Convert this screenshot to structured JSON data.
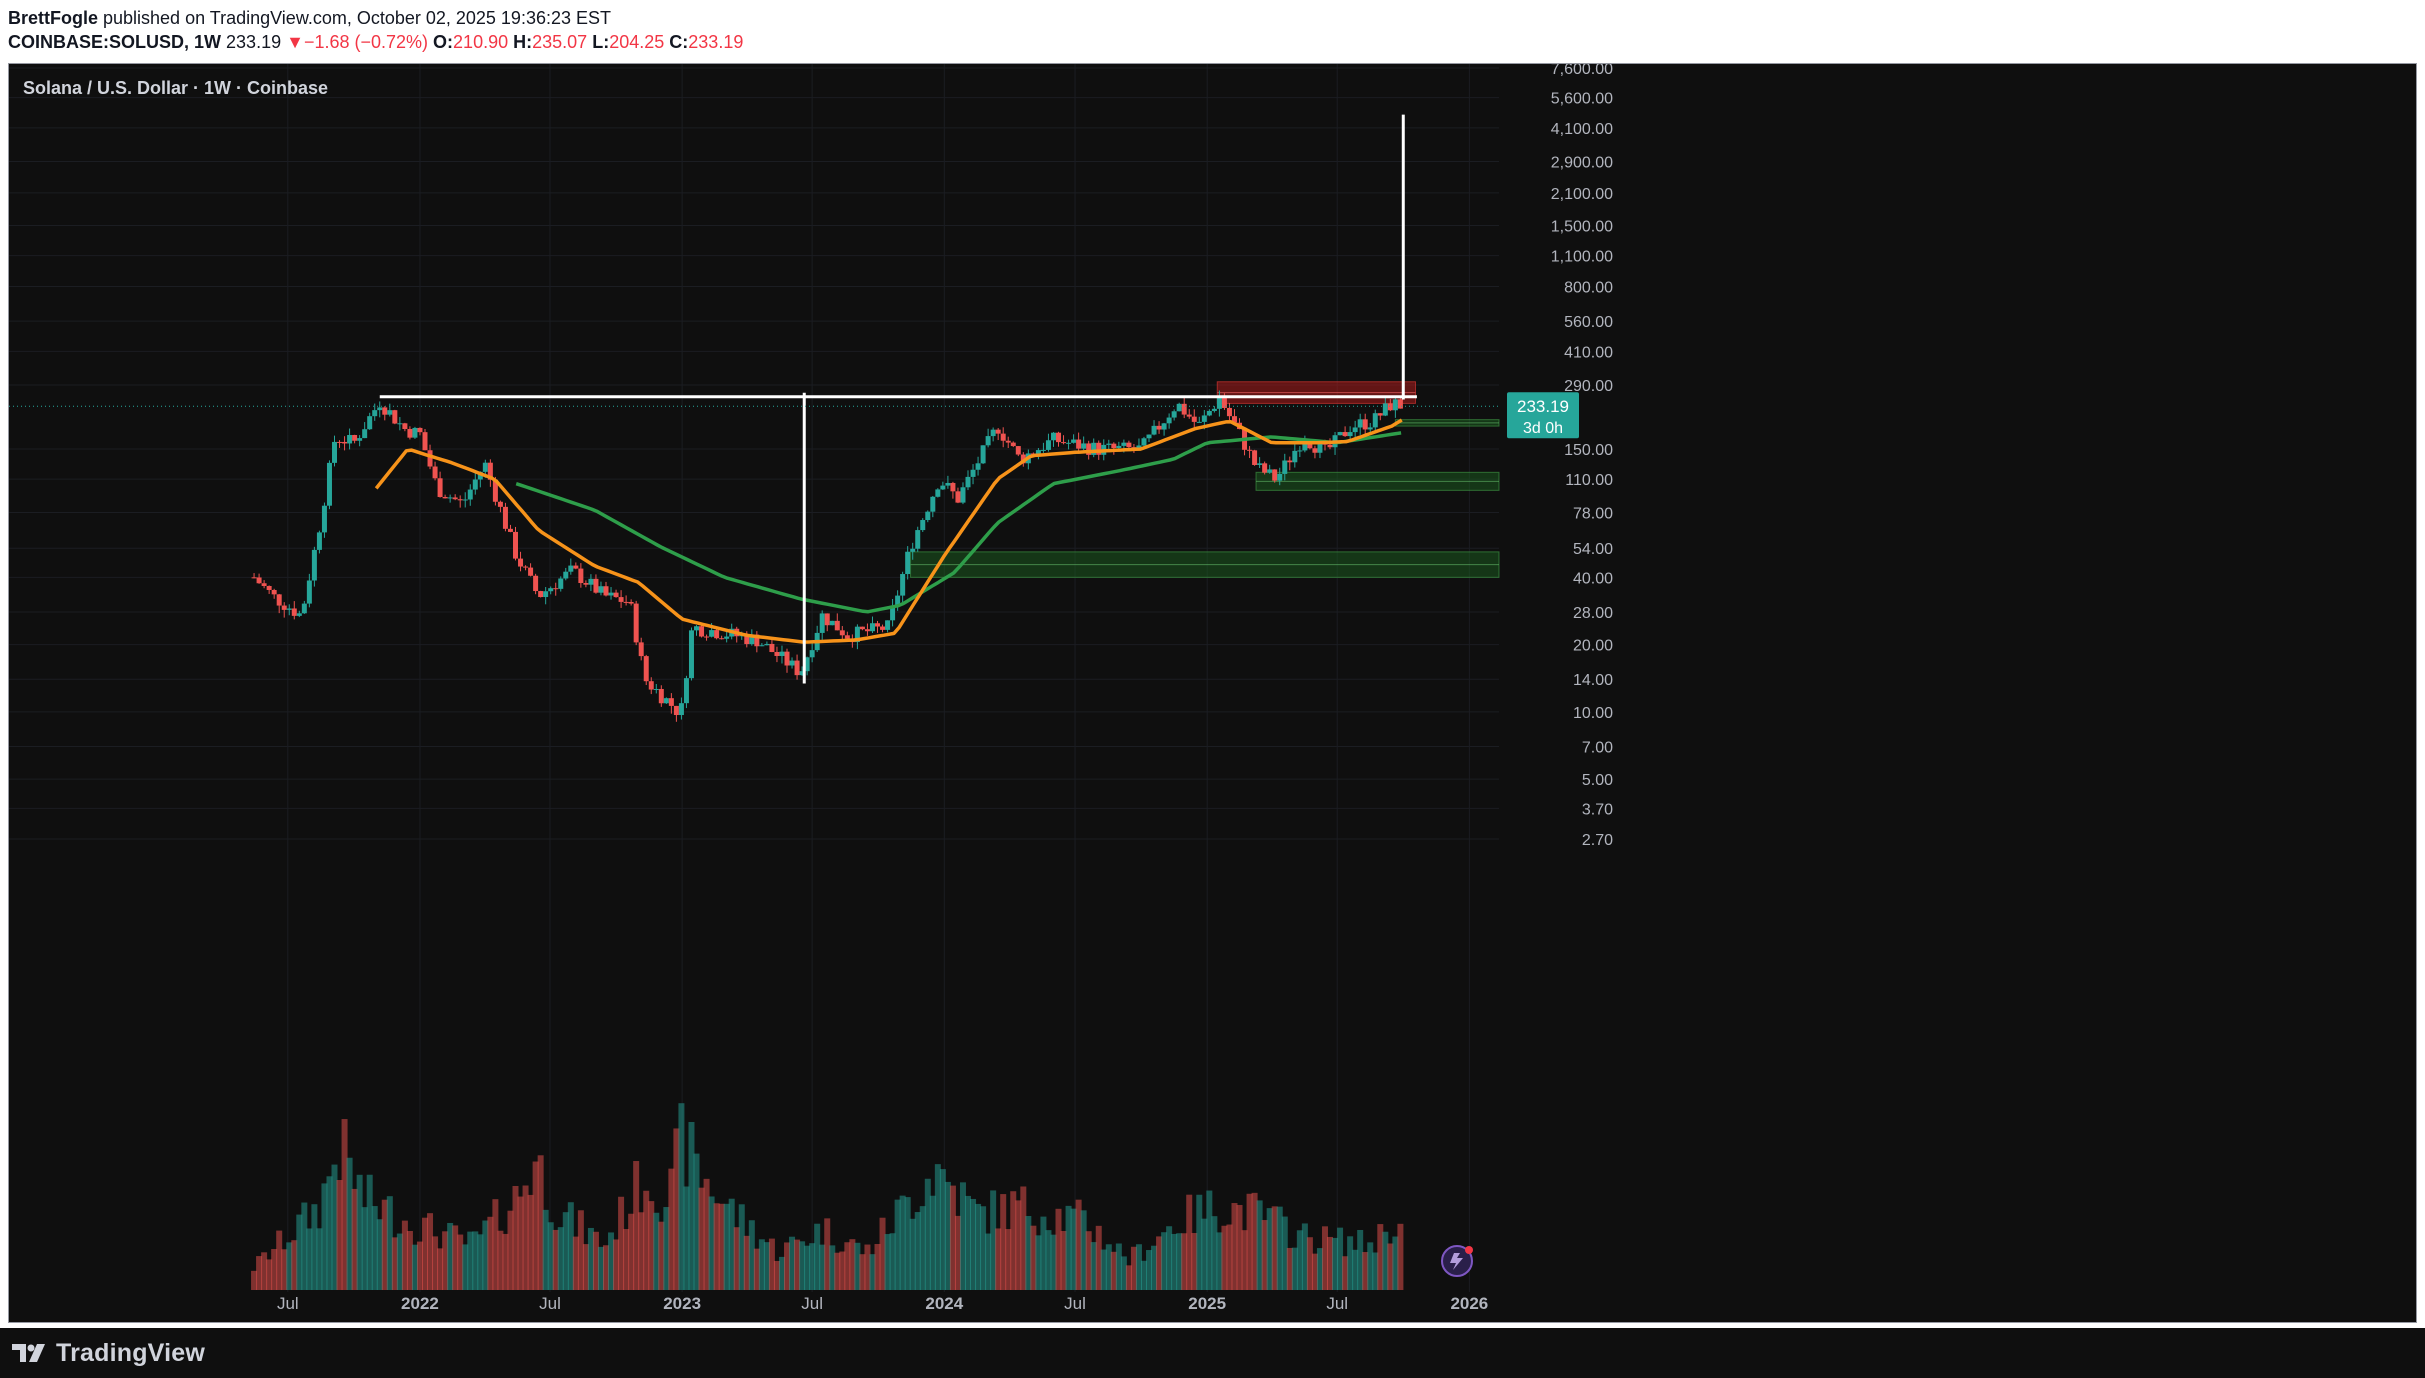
{
  "header": {
    "author": "BrettFogle",
    "published_text": " published on TradingView.com, October 02, 2025 19:36:23 EST",
    "symbol": "COINBASE:SOLUSD, 1W",
    "last": "233.19",
    "change_arrow": "▼",
    "change": "−1.68 (−0.72%)",
    "o_label": "O:",
    "o_value": "210.90",
    "h_label": "H:",
    "h_value": "235.07",
    "l_label": "L:",
    "l_value": "204.25",
    "c_label": "C:",
    "c_value": "233.19"
  },
  "legend": {
    "title": "Solana / U.S. Dollar · 1W · Coinbase"
  },
  "price_tag": {
    "price": "233.19",
    "countdown": "3d 0h"
  },
  "footer": {
    "brand": "TradingView"
  },
  "colors": {
    "up": "#26a69a",
    "down": "#ef5350",
    "ema_orange": "#f7931a",
    "ema_green": "#2e9e4a",
    "annotation": "#ffffff",
    "zone_red": "#b71c1c",
    "zone_green": "#1b5e20"
  },
  "chart_data": {
    "type": "candlestick",
    "title": "Solana / U.S. Dollar · 1W · Coinbase",
    "y_scale": "log",
    "y_ticks": [
      "7,600.00",
      "5,600.00",
      "4,100.00",
      "2,900.00",
      "2,100.00",
      "1,500.00",
      "1,100.00",
      "800.00",
      "560.00",
      "410.00",
      "290.00",
      "150.00",
      "110.00",
      "78.00",
      "54.00",
      "40.00",
      "28.00",
      "20.00",
      "14.00",
      "10.00",
      "7.00",
      "5.00",
      "3.70",
      "2.70"
    ],
    "y_tick_values": [
      7600,
      5600,
      4100,
      2900,
      2100,
      1500,
      1100,
      800,
      560,
      410,
      290,
      150,
      110,
      78,
      54,
      40,
      28,
      20,
      14,
      10,
      7,
      5,
      3.7,
      2.7
    ],
    "x_ticks": [
      {
        "label": "Jul",
        "date": "2021-07-01"
      },
      {
        "label": "2022",
        "date": "2022-01-01"
      },
      {
        "label": "Jul",
        "date": "2022-07-01"
      },
      {
        "label": "2023",
        "date": "2023-01-01"
      },
      {
        "label": "Jul",
        "date": "2023-07-01"
      },
      {
        "label": "2024",
        "date": "2024-01-01"
      },
      {
        "label": "Jul",
        "date": "2024-07-01"
      },
      {
        "label": "2025",
        "date": "2025-01-01"
      },
      {
        "label": "Jul",
        "date": "2025-07-01"
      },
      {
        "label": "2026",
        "date": "2026-01-01"
      }
    ],
    "x_range": [
      "2021-05-01",
      "2026-04-01"
    ],
    "last_price": 233.19,
    "close_path": [
      [
        "2021-05-15",
        40
      ],
      [
        "2021-06-10",
        33
      ],
      [
        "2021-07-20",
        27
      ],
      [
        "2021-08-15",
        70
      ],
      [
        "2021-09-05",
        170
      ],
      [
        "2021-10-01",
        160
      ],
      [
        "2021-11-06",
        245
      ],
      [
        "2021-12-10",
        185
      ],
      [
        "2022-01-01",
        175
      ],
      [
        "2022-01-25",
        100
      ],
      [
        "2022-03-01",
        85
      ],
      [
        "2022-04-01",
        130
      ],
      [
        "2022-05-15",
        50
      ],
      [
        "2022-06-15",
        33
      ],
      [
        "2022-08-01",
        43
      ],
      [
        "2022-09-15",
        33
      ],
      [
        "2022-10-20",
        31
      ],
      [
        "2022-11-10",
        14
      ],
      [
        "2022-12-30",
        9.8
      ],
      [
        "2023-01-15",
        24
      ],
      [
        "2023-02-15",
        23
      ],
      [
        "2023-04-15",
        21
      ],
      [
        "2023-06-15",
        15
      ],
      [
        "2023-07-15",
        27
      ],
      [
        "2023-08-20",
        22
      ],
      [
        "2023-10-15",
        24
      ],
      [
        "2023-11-15",
        55
      ],
      [
        "2023-12-25",
        110
      ],
      [
        "2024-01-20",
        90
      ],
      [
        "2024-03-15",
        190
      ],
      [
        "2024-04-15",
        135
      ],
      [
        "2024-06-01",
        165
      ],
      [
        "2024-08-01",
        150
      ],
      [
        "2024-10-01",
        150
      ],
      [
        "2024-11-20",
        240
      ],
      [
        "2024-12-20",
        190
      ],
      [
        "2025-01-18",
        255
      ],
      [
        "2025-02-15",
        175
      ],
      [
        "2025-03-10",
        125
      ],
      [
        "2025-04-07",
        110
      ],
      [
        "2025-05-15",
        170
      ],
      [
        "2025-06-15",
        145
      ],
      [
        "2025-07-20",
        190
      ],
      [
        "2025-08-20",
        200
      ],
      [
        "2025-09-15",
        240
      ],
      [
        "2025-10-02",
        233.19
      ]
    ],
    "ema_orange_path": [
      [
        "2021-11-01",
        100
      ],
      [
        "2021-12-15",
        150
      ],
      [
        "2022-02-15",
        130
      ],
      [
        "2022-04-15",
        110
      ],
      [
        "2022-06-15",
        65
      ],
      [
        "2022-09-01",
        45
      ],
      [
        "2022-11-01",
        38
      ],
      [
        "2023-01-01",
        26
      ],
      [
        "2023-04-01",
        22
      ],
      [
        "2023-06-20",
        20.5
      ],
      [
        "2023-09-01",
        21
      ],
      [
        "2023-10-25",
        22.5
      ],
      [
        "2024-01-01",
        50
      ],
      [
        "2024-03-15",
        110
      ],
      [
        "2024-05-01",
        140
      ],
      [
        "2024-07-01",
        145
      ],
      [
        "2024-10-01",
        150
      ],
      [
        "2024-12-15",
        185
      ],
      [
        "2025-02-01",
        200
      ],
      [
        "2025-04-01",
        160
      ],
      [
        "2025-06-01",
        160
      ],
      [
        "2025-07-15",
        162
      ],
      [
        "2025-09-15",
        190
      ],
      [
        "2025-10-02",
        205
      ]
    ],
    "ema_green_path": [
      [
        "2022-05-15",
        105
      ],
      [
        "2022-09-01",
        80
      ],
      [
        "2022-12-01",
        55
      ],
      [
        "2023-03-01",
        40
      ],
      [
        "2023-06-15",
        32
      ],
      [
        "2023-09-15",
        28
      ],
      [
        "2023-11-01",
        30
      ],
      [
        "2024-01-15",
        42
      ],
      [
        "2024-03-15",
        70
      ],
      [
        "2024-06-01",
        105
      ],
      [
        "2024-09-01",
        120
      ],
      [
        "2024-11-15",
        135
      ],
      [
        "2025-01-01",
        160
      ],
      [
        "2025-04-01",
        170
      ],
      [
        "2025-07-01",
        160
      ],
      [
        "2025-10-02",
        178
      ]
    ],
    "volume_path": [
      [
        "2021-05-15",
        0.15
      ],
      [
        "2021-08-15",
        0.55
      ],
      [
        "2021-09-10",
        0.95
      ],
      [
        "2021-10-15",
        0.6
      ],
      [
        "2021-12-15",
        0.45
      ],
      [
        "2022-03-15",
        0.3
      ],
      [
        "2022-05-15",
        0.6
      ],
      [
        "2022-06-10",
        0.85
      ],
      [
        "2022-07-15",
        0.5
      ],
      [
        "2022-09-15",
        0.3
      ],
      [
        "2022-11-10",
        0.75
      ],
      [
        "2022-12-15",
        0.6
      ],
      [
        "2023-01-01",
        1.0
      ],
      [
        "2023-01-20",
        0.8
      ],
      [
        "2023-03-15",
        0.5
      ],
      [
        "2023-05-15",
        0.25
      ],
      [
        "2023-07-15",
        0.4
      ],
      [
        "2023-09-15",
        0.25
      ],
      [
        "2023-11-15",
        0.6
      ],
      [
        "2023-12-20",
        0.8
      ],
      [
        "2024-02-15",
        0.5
      ],
      [
        "2024-04-15",
        0.55
      ],
      [
        "2024-07-15",
        0.45
      ],
      [
        "2024-09-15",
        0.2
      ],
      [
        "2024-11-20",
        0.45
      ],
      [
        "2025-01-15",
        0.55
      ],
      [
        "2025-03-15",
        0.5
      ],
      [
        "2025-05-15",
        0.35
      ],
      [
        "2025-08-15",
        0.3
      ],
      [
        "2025-09-20",
        0.45
      ],
      [
        "2025-10-02",
        0.35
      ]
    ],
    "annotations": [
      {
        "type": "resistance_line",
        "from": "2021-11-06",
        "to": "2025-10-20",
        "price": 257
      },
      {
        "type": "vertical_line",
        "date": "2023-06-20",
        "from_price": 13.4,
        "to_price": 268
      },
      {
        "type": "vertical_line",
        "date": "2025-10-01",
        "from_price": 250,
        "to_price": 4700
      }
    ],
    "zones": [
      {
        "color": "red",
        "from": "2025-01-15",
        "to": "2025-10-18",
        "low": 240,
        "high": 300
      },
      {
        "color": "green",
        "from": "2025-09-20",
        "to": "2026-03-31",
        "low": 190,
        "high": 203
      },
      {
        "color": "green",
        "from": "2025-03-10",
        "to": "2026-03-31",
        "low": 98,
        "high": 118
      },
      {
        "color": "green",
        "from": "2023-11-15",
        "to": "2026-03-31",
        "low": 40,
        "high": 52
      }
    ]
  }
}
